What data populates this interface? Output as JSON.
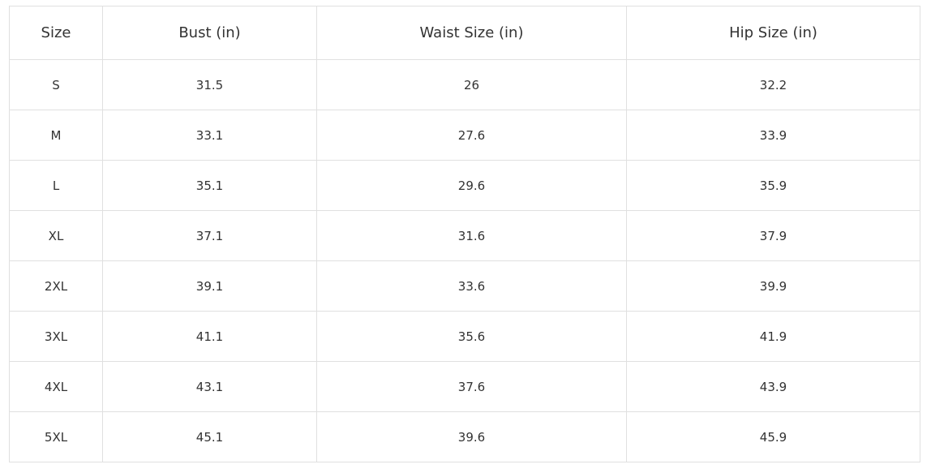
{
  "table": {
    "headers": [
      "Size",
      "Bust (in)",
      "Waist Size (in)",
      "Hip Size (in)"
    ],
    "rows": [
      [
        "S",
        "31.5",
        "26",
        "32.2"
      ],
      [
        "M",
        "33.1",
        "27.6",
        "33.9"
      ],
      [
        "L",
        "35.1",
        "29.6",
        "35.9"
      ],
      [
        "XL",
        "37.1",
        "31.6",
        "37.9"
      ],
      [
        "2XL",
        "39.1",
        "33.6",
        "39.9"
      ],
      [
        "3XL",
        "41.1",
        "35.6",
        "41.9"
      ],
      [
        "4XL",
        "43.1",
        "37.6",
        "43.9"
      ],
      [
        "5XL",
        "45.1",
        "39.6",
        "45.9"
      ]
    ]
  }
}
